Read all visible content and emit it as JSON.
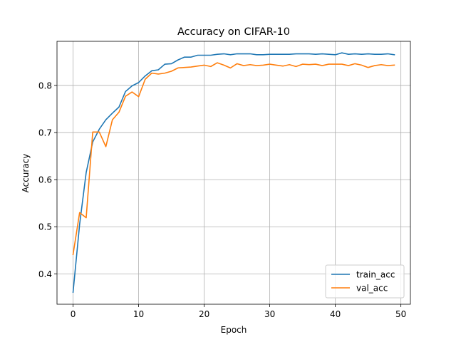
{
  "chart_data": {
    "type": "line",
    "title": "Accuracy on CIFAR-10",
    "xlabel": "Epoch",
    "ylabel": "Accuracy",
    "xlim": [
      -2.45,
      51.45
    ],
    "ylim": [
      0.3355,
      0.8935
    ],
    "xticks": [
      0,
      10,
      20,
      30,
      40,
      50
    ],
    "yticks": [
      0.4,
      0.5,
      0.6,
      0.7,
      0.8
    ],
    "xtick_labels": [
      "0",
      "10",
      "20",
      "30",
      "40",
      "50"
    ],
    "ytick_labels": [
      "0.4",
      "0.5",
      "0.6",
      "0.7",
      "0.8"
    ],
    "grid": true,
    "legend_position": "lower-right",
    "x": [
      0,
      1,
      2,
      3,
      4,
      5,
      6,
      7,
      8,
      9,
      10,
      11,
      12,
      13,
      14,
      15,
      16,
      17,
      18,
      19,
      20,
      21,
      22,
      23,
      24,
      25,
      26,
      27,
      28,
      29,
      30,
      31,
      32,
      33,
      34,
      35,
      36,
      37,
      38,
      39,
      40,
      41,
      42,
      43,
      44,
      45,
      46,
      47,
      48,
      49
    ],
    "series": [
      {
        "name": "train_acc",
        "color": "#1f77b4",
        "values": [
          0.361,
          0.505,
          0.615,
          0.68,
          0.707,
          0.727,
          0.741,
          0.754,
          0.787,
          0.799,
          0.806,
          0.82,
          0.831,
          0.833,
          0.845,
          0.846,
          0.854,
          0.86,
          0.86,
          0.864,
          0.864,
          0.864,
          0.866,
          0.867,
          0.865,
          0.867,
          0.867,
          0.867,
          0.865,
          0.865,
          0.866,
          0.866,
          0.866,
          0.866,
          0.867,
          0.867,
          0.867,
          0.866,
          0.867,
          0.866,
          0.865,
          0.869,
          0.866,
          0.867,
          0.866,
          0.867,
          0.866,
          0.866,
          0.867,
          0.865
        ]
      },
      {
        "name": "val_acc",
        "color": "#ff7f0e",
        "values": [
          0.441,
          0.53,
          0.519,
          0.701,
          0.701,
          0.67,
          0.727,
          0.743,
          0.777,
          0.786,
          0.776,
          0.813,
          0.826,
          0.824,
          0.826,
          0.83,
          0.837,
          0.838,
          0.839,
          0.841,
          0.843,
          0.84,
          0.848,
          0.843,
          0.837,
          0.846,
          0.842,
          0.844,
          0.842,
          0.843,
          0.845,
          0.843,
          0.841,
          0.844,
          0.84,
          0.845,
          0.844,
          0.845,
          0.842,
          0.845,
          0.845,
          0.845,
          0.842,
          0.846,
          0.843,
          0.838,
          0.842,
          0.844,
          0.842,
          0.843
        ]
      }
    ]
  }
}
